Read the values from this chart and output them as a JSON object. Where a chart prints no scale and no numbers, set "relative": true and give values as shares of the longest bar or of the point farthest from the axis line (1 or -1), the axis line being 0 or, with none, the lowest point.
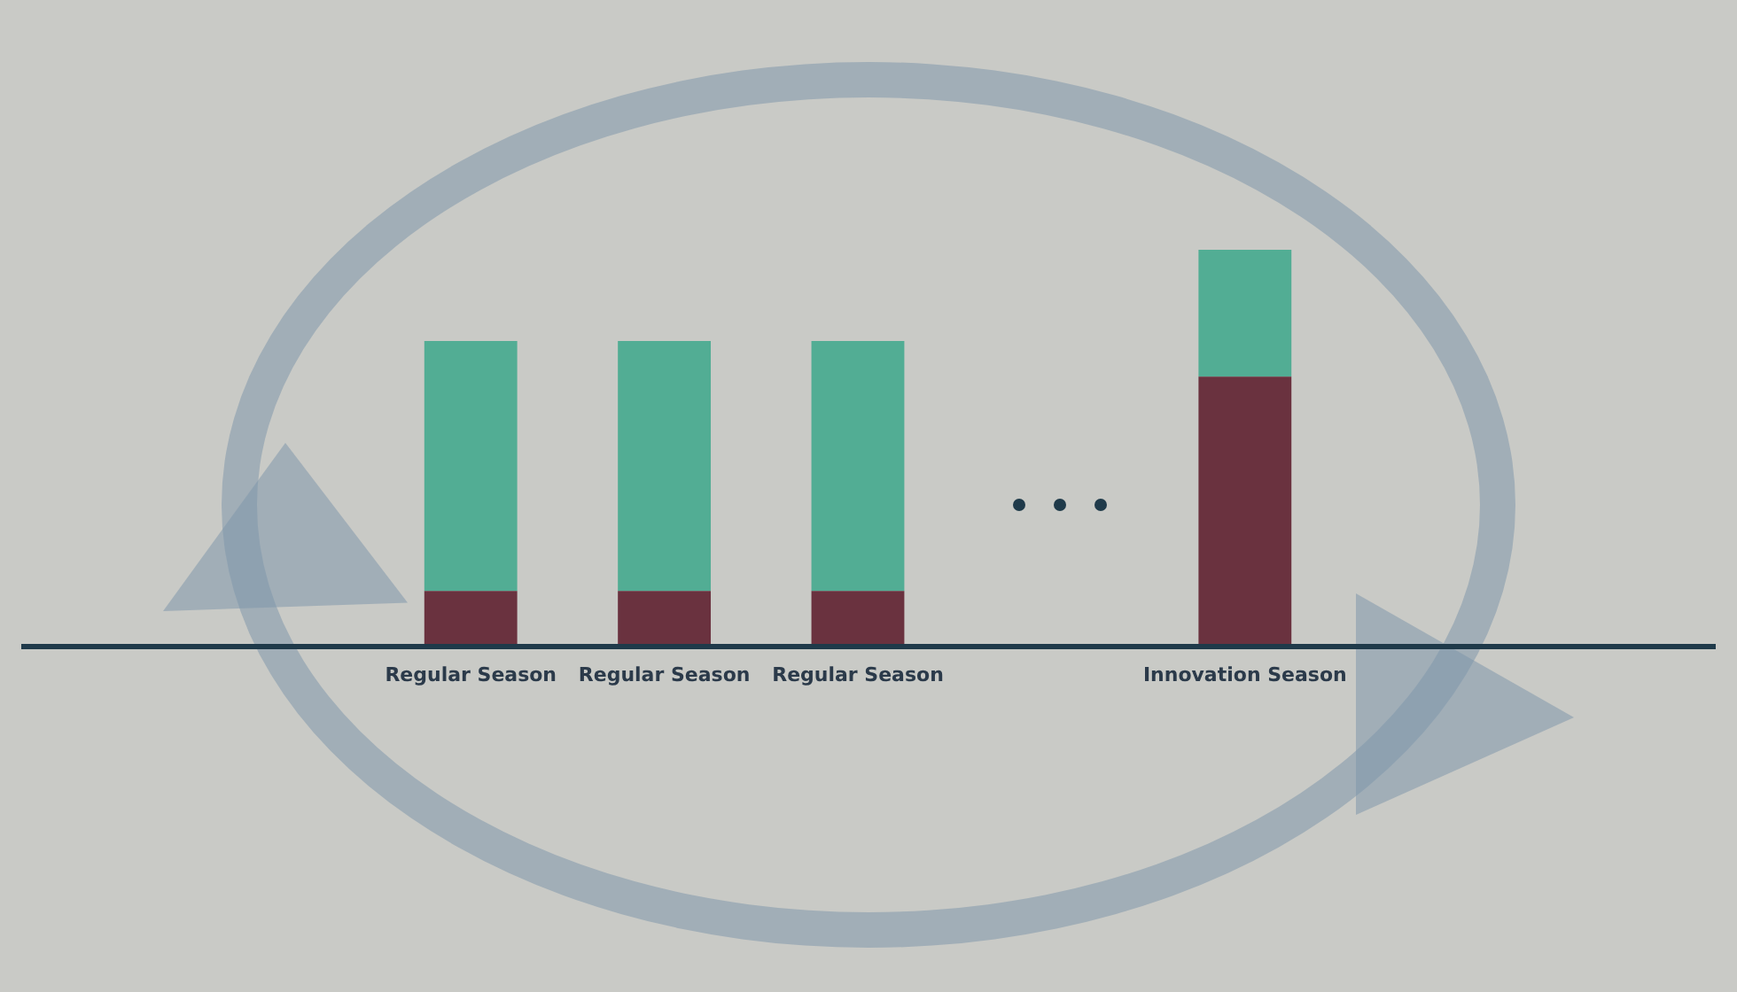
{
  "chart_data": {
    "type": "bar",
    "stacked": true,
    "relative": true,
    "categories": [
      "Regular Season",
      "Regular Season",
      "Regular Season",
      null,
      "Innovation Season"
    ],
    "series": [
      {
        "color": "#6a323f",
        "values": [
          0.14,
          0.14,
          0.14,
          null,
          0.68
        ]
      },
      {
        "color": "#52ad94",
        "values": [
          0.63,
          0.63,
          0.63,
          null,
          0.32
        ]
      }
    ]
  }
}
